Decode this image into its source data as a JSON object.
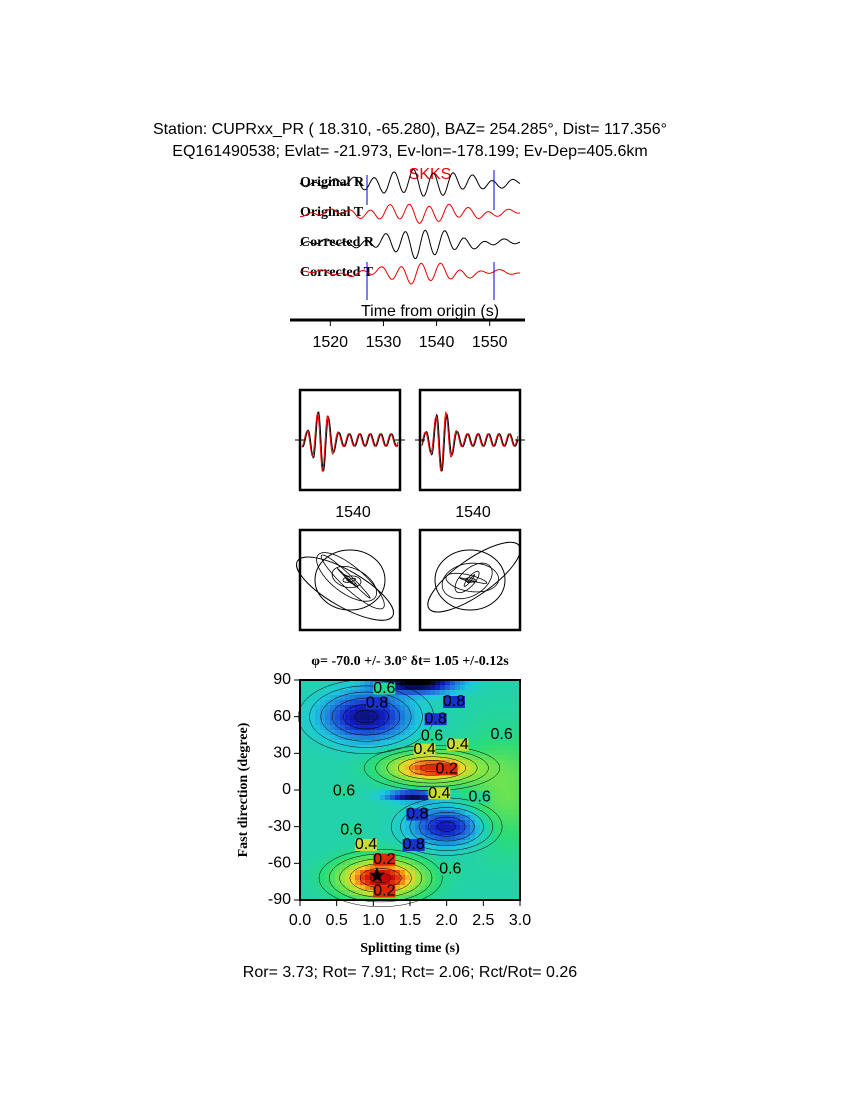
{
  "header": {
    "line1": "Station: CUPRxx_PR (  18.310,  -65.280), BAZ=  254.285°, Dist=  117.356°",
    "line2": "EQ161490538; Evlat= -21.973, Ev-lon=-178.199; Ev-Dep=405.6km"
  },
  "waveforms": {
    "traces": [
      "Original R",
      "Original T",
      "Corrected R",
      "Corrected T"
    ],
    "phase": "SKKS",
    "xlabel": "Time from origin (s)",
    "xlim": [
      1514.3,
      1555.7
    ],
    "xticks": [
      1520,
      1530,
      1540,
      1550
    ]
  },
  "windows": [
    {
      "xtick": 1540
    },
    {
      "xtick": 1540
    }
  ],
  "splitting": {
    "title": "φ= -70.0 +/- 3.0° δt= 1.05 +/-0.12s",
    "xlabel": "Splitting time (s)",
    "ylabel": "Fast direction (degree)",
    "xlim": [
      0,
      3
    ],
    "ylim": [
      -90,
      90
    ],
    "xticks": [
      {
        "value": 0,
        "label": "0.0"
      },
      {
        "value": 0.5,
        "label": "0.5"
      },
      {
        "value": 1,
        "label": "1.0"
      },
      {
        "value": 1.5,
        "label": "1.5"
      },
      {
        "value": 2,
        "label": "2.0"
      },
      {
        "value": 2.5,
        "label": "2.5"
      },
      {
        "value": 3,
        "label": "3.0"
      }
    ],
    "yticks": [
      -90,
      -60,
      -30,
      0,
      30,
      60,
      90
    ],
    "best": {
      "dt": 1.05,
      "phi": -70
    },
    "contour_labels": [
      "0.6",
      "0.8",
      "0.8",
      "0.8",
      "0.6",
      "0.6",
      "0.4",
      "0.4",
      "0.2",
      "0.6",
      "0.4",
      "0.6",
      "0.8",
      "0.6",
      "0.4",
      "0.2",
      "0.8",
      "0.6",
      "0.2"
    ]
  },
  "footer": "Ror= 3.73; Rot= 7.91; Rct= 2.06; Rct/Rot= 0.26"
}
